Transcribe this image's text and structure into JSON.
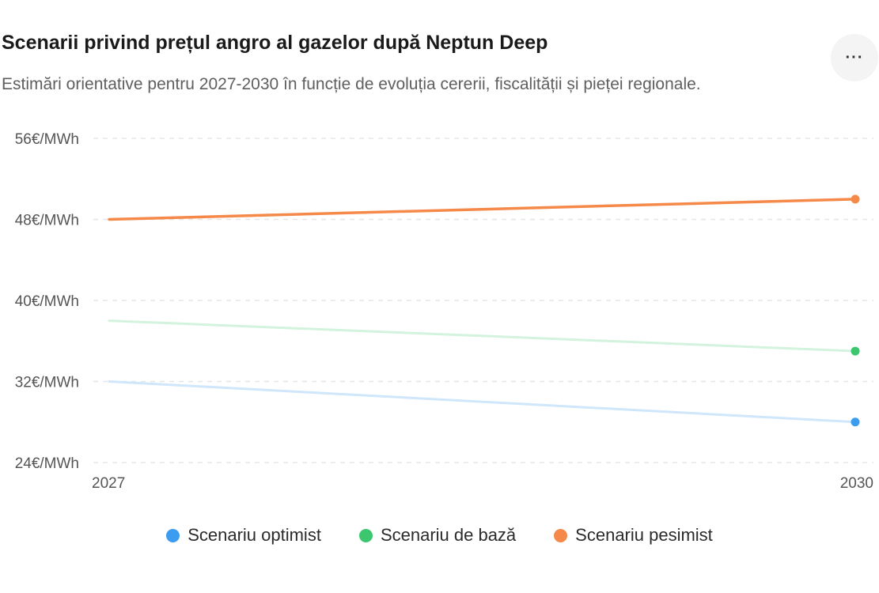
{
  "header": {
    "title": "Scenarii privind prețul angro al gazelor după Neptun Deep",
    "subtitle": "Estimări orientative pentru 2027-2030 în funcție de evoluția cererii, fiscalității și pieței regionale.",
    "more_icon": "more-horizontal-icon",
    "more_label": "···"
  },
  "chart_data": {
    "type": "line",
    "x": [
      "2027",
      "2030"
    ],
    "ylim": [
      24,
      56
    ],
    "yticks": [
      24,
      32,
      40,
      48,
      56
    ],
    "ytick_labels": [
      "24€/MWh",
      "32€/MWh",
      "40€/MWh",
      "48€/MWh",
      "56€/MWh"
    ],
    "grid": true,
    "legend_position": "bottom",
    "series": [
      {
        "name": "Scenariu optimist",
        "values": [
          32,
          28
        ],
        "color": "#3b9cf0",
        "line_color": "#cfe6fb",
        "emphasis": false
      },
      {
        "name": "Scenariu de bază",
        "values": [
          38,
          35
        ],
        "color": "#3cc76f",
        "line_color": "#d3f3de",
        "emphasis": false
      },
      {
        "name": "Scenariu pesimist",
        "values": [
          48,
          50
        ],
        "color": "#f5894a",
        "line_color": "#f5894a",
        "emphasis": true
      }
    ]
  }
}
